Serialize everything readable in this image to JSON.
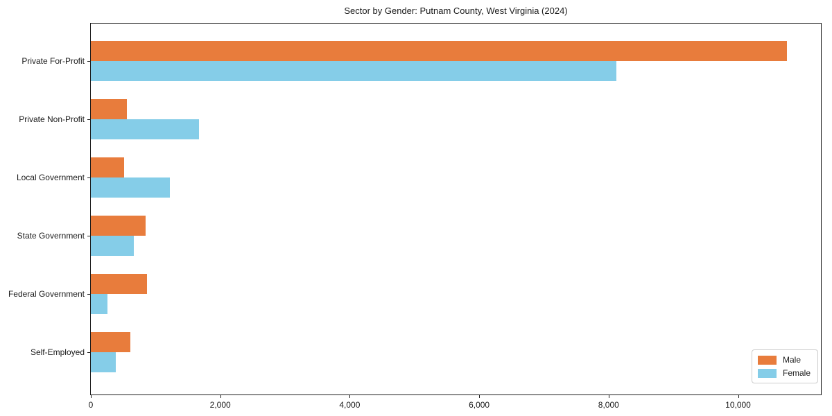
{
  "chart_data": {
    "type": "bar",
    "orientation": "horizontal",
    "title": "Sector by Gender: Putnam County, West Virginia (2024)",
    "categories": [
      "Private For-Profit",
      "Private Non-Profit",
      "Local Government",
      "State Government",
      "Federal Government",
      "Self-Employed"
    ],
    "series": [
      {
        "name": "Male",
        "color": "#e87c3c",
        "values": [
          10760,
          560,
          510,
          850,
          870,
          610
        ]
      },
      {
        "name": "Female",
        "color": "#85cde8",
        "values": [
          8120,
          1670,
          1220,
          660,
          260,
          390
        ]
      }
    ],
    "xlim": [
      0,
      11280
    ],
    "xticks": [
      0,
      2000,
      4000,
      6000,
      8000,
      10000
    ],
    "xtick_labels": [
      "0",
      "2,000",
      "4,000",
      "6,000",
      "8,000",
      "10,000"
    ],
    "xlabel": "",
    "ylabel": "",
    "grid": false,
    "legend_position": "lower right",
    "colors": {
      "male": "#e87c3c",
      "female": "#85cde8",
      "axis": "#1a1a1a",
      "legend_border": "#cccccc"
    }
  }
}
